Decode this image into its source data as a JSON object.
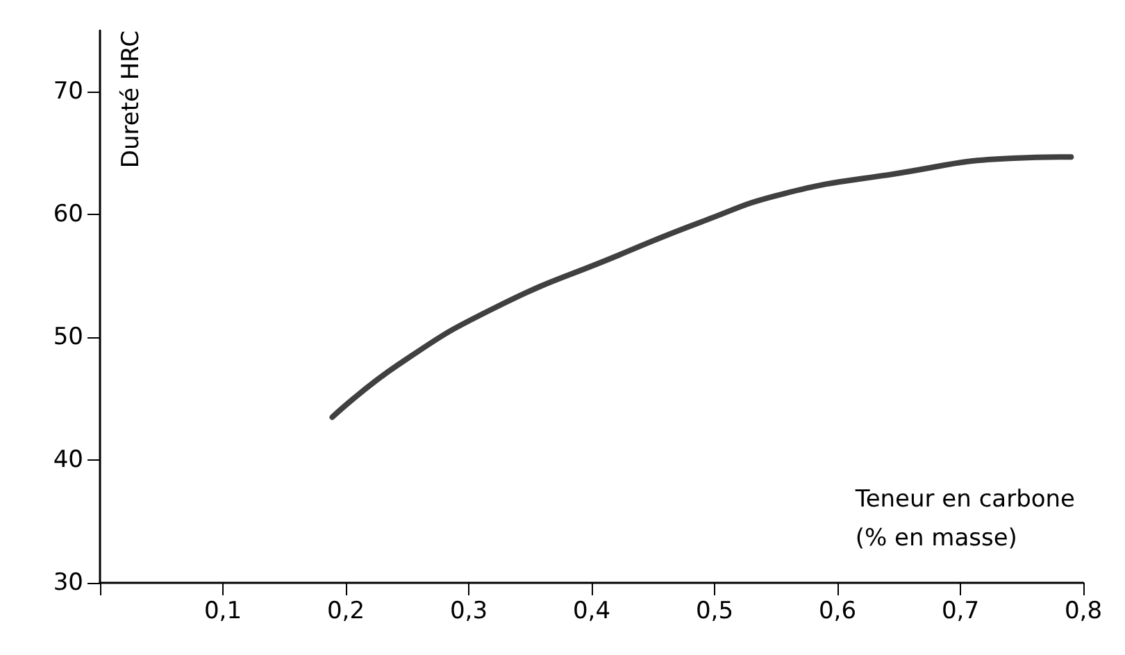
{
  "chart_data": {
    "type": "line",
    "xlabel": "Teneur en carbone\n(% en masse)",
    "ylabel": "Dureté HRC",
    "series": [
      {
        "color": "#404040",
        "x": [
          0.189,
          0.243,
          0.323,
          0.422,
          0.489,
          0.556,
          0.645,
          0.743,
          0.79
        ],
        "values": [
          43.5,
          47.8,
          52.5,
          56.7,
          59.4,
          61.7,
          63.3,
          64.6,
          64.7
        ]
      }
    ],
    "xlim": [
      0,
      0.8
    ],
    "xticks": [
      {
        "value": 0,
        "label": null
      },
      {
        "value": 0.1,
        "label": "0,1"
      },
      {
        "value": 0.2,
        "label": "0,2"
      },
      {
        "value": 0.3,
        "label": "0,3"
      },
      {
        "value": 0.4,
        "label": "0,4"
      },
      {
        "value": 0.5,
        "label": "0,5"
      },
      {
        "value": 0.6,
        "label": "0,6"
      },
      {
        "value": 0.7,
        "label": "0,7"
      },
      {
        "value": 0.8,
        "label": "0,8"
      }
    ],
    "ylim": [
      30,
      75
    ],
    "yticks": [
      30,
      40,
      50,
      60,
      70
    ],
    "grid": false,
    "marker": "none",
    "line_style": "solid"
  }
}
